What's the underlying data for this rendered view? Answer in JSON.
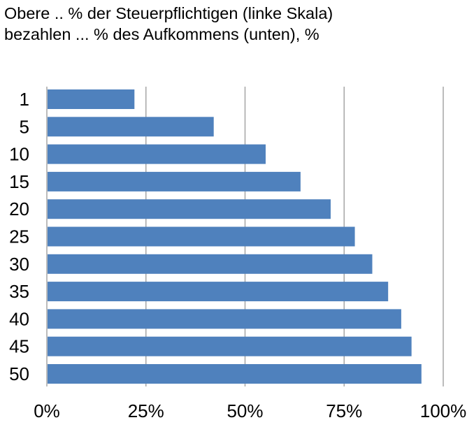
{
  "chart_data": {
    "type": "bar",
    "orientation": "horizontal",
    "title_lines": [
      "Obere .. % der Steuerpflichtigen (linke Skala)",
      "bezahlen ... % des Aufkommens (unten), %"
    ],
    "categories": [
      "1",
      "5",
      "10",
      "15",
      "20",
      "25",
      "30",
      "35",
      "40",
      "45",
      "50"
    ],
    "values": [
      22.1,
      42.1,
      55.2,
      64.0,
      71.6,
      77.7,
      82.1,
      86.1,
      89.4,
      92.0,
      94.5
    ],
    "xlim": [
      0,
      100
    ],
    "xticks": [
      0,
      25,
      50,
      75,
      100
    ],
    "xtick_labels": [
      "0%",
      "25%",
      "50%",
      "75%",
      "100%"
    ],
    "grid": "vertical",
    "bar_color": "#4f81bd",
    "grid_color": "#a6a6a6"
  }
}
